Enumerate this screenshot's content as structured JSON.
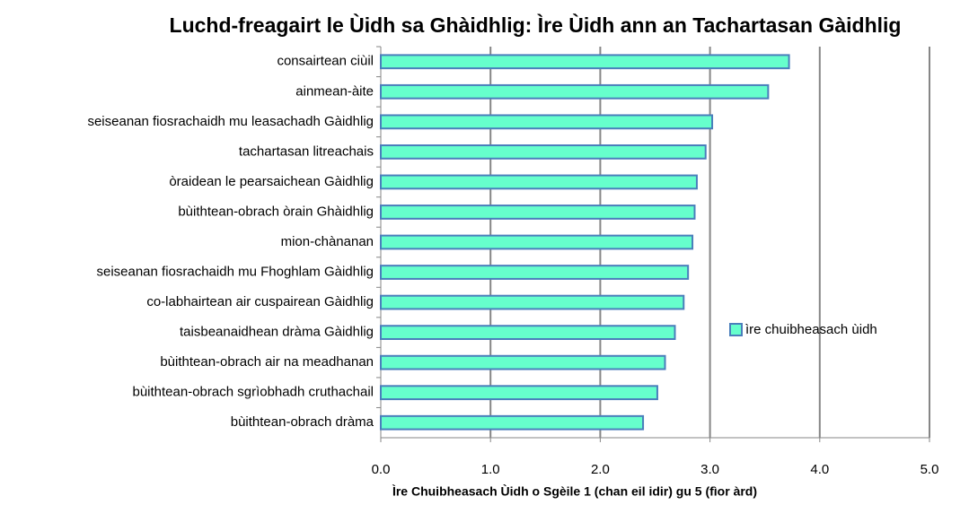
{
  "chart_data": {
    "type": "barh",
    "title": "Luchd-freagairt le Ùidh sa Ghàidhlig: Ìre Ùidh ann an Tachartasan Gàidhlig",
    "xlabel": "Ìre Chuibheasach Ùidh o Sgèile 1 (chan eil idir) gu 5 (fìor àrd)",
    "categories": [
      "consairtean ciùil",
      "ainmean-àite",
      "seiseanan fiosrachaidh mu leasachadh Gàidhlig",
      "tachartasan litreachais",
      "òraidean le pearsaichean Gàidhlig",
      "bùithtean-obrach òrain Ghàidhlig",
      "mion-chànanan",
      "seiseanan fiosrachaidh mu Fhoghlam Gàidhlig",
      "co-labhairtean air cuspairean Gàidhlig",
      "taisbeanaidhean dràma Gàidhlig",
      "bùithtean-obrach air na meadhanan",
      "bùithtean-obrach sgrìobhadh cruthachail",
      "bùithtean-obrach dràma"
    ],
    "series": [
      {
        "name": "ìre chuibheasach ùidh",
        "color": "#66ffcc",
        "values": [
          3.72,
          3.53,
          3.02,
          2.96,
          2.88,
          2.86,
          2.84,
          2.8,
          2.76,
          2.68,
          2.59,
          2.52,
          2.39
        ]
      }
    ],
    "xlim": [
      0,
      5
    ],
    "xticks": [
      {
        "value": 0,
        "label": "0.0"
      },
      {
        "value": 1,
        "label": "1.0"
      },
      {
        "value": 2,
        "label": "2.0"
      },
      {
        "value": 3,
        "label": "3.0"
      },
      {
        "value": 4,
        "label": "4.0"
      },
      {
        "value": 5,
        "label": "5.0"
      }
    ],
    "grid": true,
    "legend": "right"
  }
}
